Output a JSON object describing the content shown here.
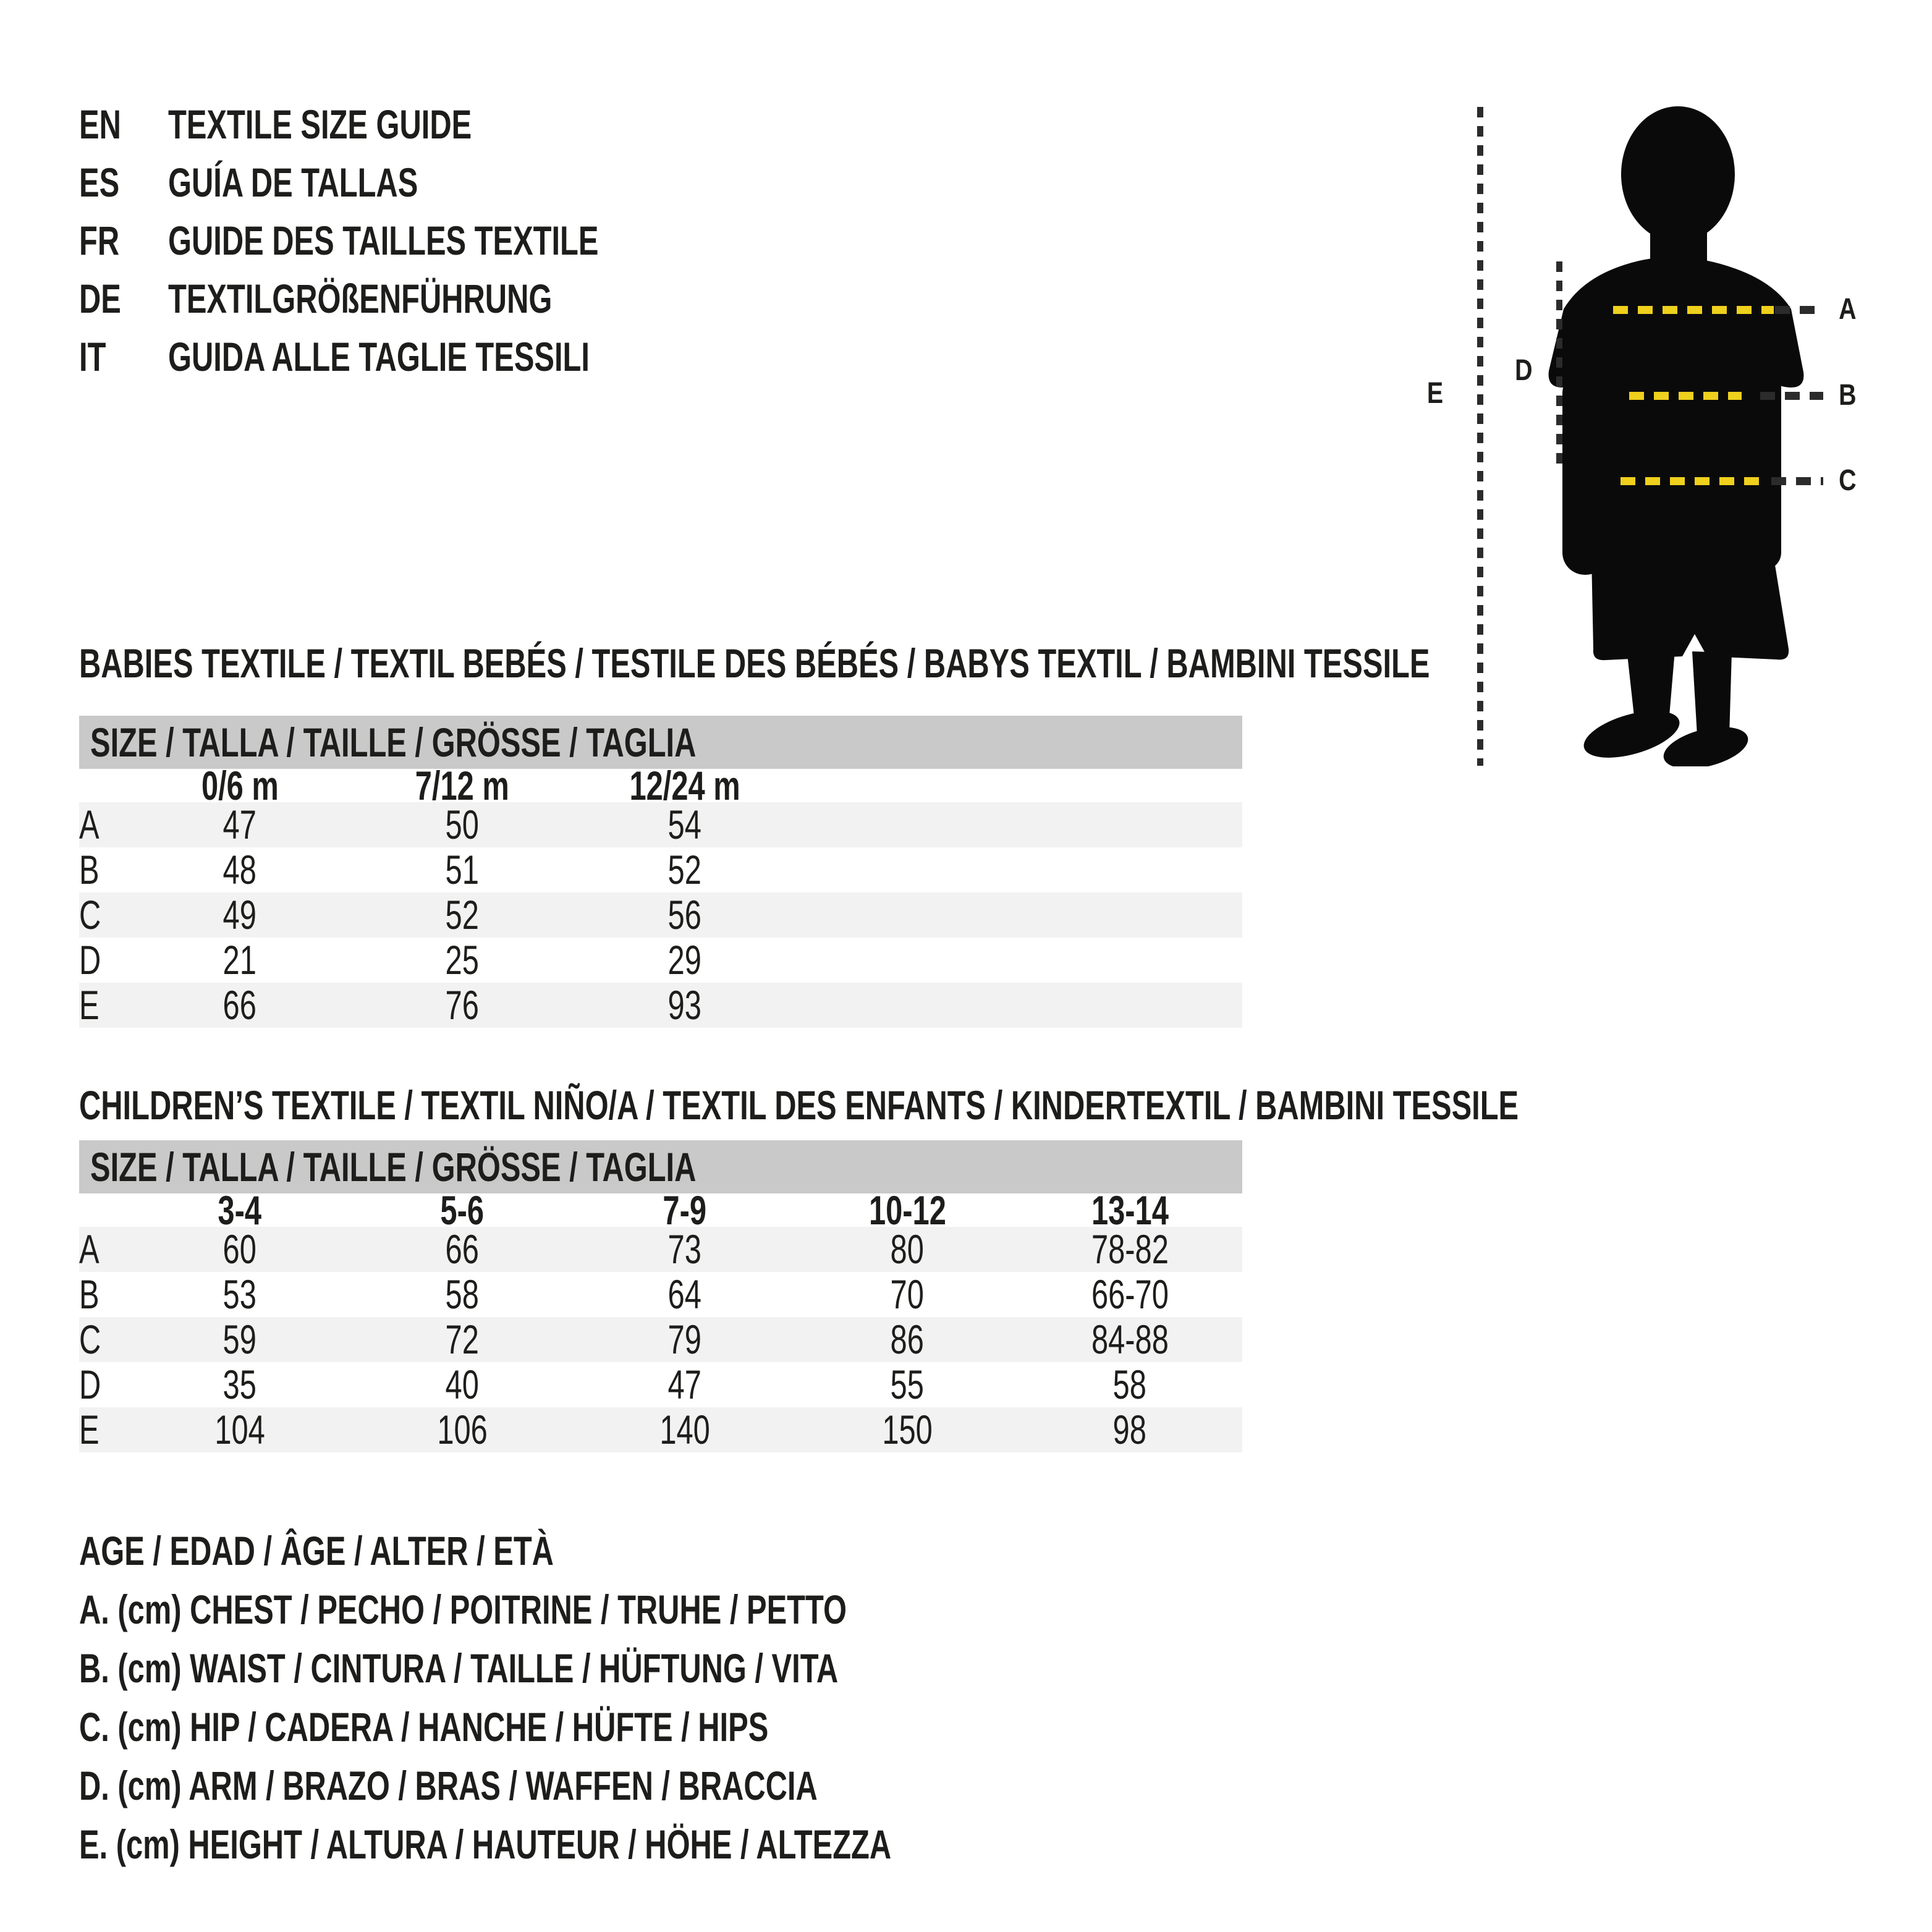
{
  "header": {
    "languages": [
      {
        "code": "EN",
        "title": "TEXTILE SIZE GUIDE"
      },
      {
        "code": "ES",
        "title": "GUÍA DE TALLAS"
      },
      {
        "code": "FR",
        "title": "GUIDE DES TAILLES TEXTILE"
      },
      {
        "code": "DE",
        "title": "TEXTILGRÖßENFÜHRUNG"
      },
      {
        "code": "IT",
        "title": "GUIDA ALLE TAGLIE TESSILI"
      }
    ]
  },
  "figure": {
    "measure_labels": [
      "A",
      "B",
      "C",
      "D",
      "E"
    ],
    "colors": {
      "silhouette": "#0a0a0a",
      "tape_yellow": "#efd01d",
      "dash_dark": "#2b2b2b"
    }
  },
  "babies_table": {
    "title": "BABIES TEXTILE / TEXTIL BEBÉS / TESTILE DES BÉBÉS / BABYS TEXTIL / BAMBINI TESSILE",
    "size_header": "SIZE / TALLA / TAILLE / GRÖSSE / TAGLIA",
    "columns": [
      "0/6 m",
      "7/12 m",
      "12/24 m"
    ],
    "rows": [
      {
        "label": "A",
        "values": [
          "47",
          "50",
          "54"
        ]
      },
      {
        "label": "B",
        "values": [
          "48",
          "51",
          "52"
        ]
      },
      {
        "label": "C",
        "values": [
          "49",
          "52",
          "56"
        ]
      },
      {
        "label": "D",
        "values": [
          "21",
          "25",
          "29"
        ]
      },
      {
        "label": "E",
        "values": [
          "66",
          "76",
          "93"
        ]
      }
    ]
  },
  "children_table": {
    "title": "CHILDREN’S TEXTILE / TEXTIL NIÑO/A / TEXTIL DES ENFANTS / KINDERTEXTIL / BAMBINI TESSILE",
    "size_header": "SIZE / TALLA / TAILLE / GRÖSSE / TAGLIA",
    "columns": [
      "3-4",
      "5-6",
      "7-9",
      "10-12",
      "13-14"
    ],
    "rows": [
      {
        "label": "A",
        "values": [
          "60",
          "66",
          "73",
          "80",
          "78-82"
        ]
      },
      {
        "label": "B",
        "values": [
          "53",
          "58",
          "64",
          "70",
          "66-70"
        ]
      },
      {
        "label": "C",
        "values": [
          "59",
          "72",
          "79",
          "86",
          "84-88"
        ]
      },
      {
        "label": "D",
        "values": [
          "35",
          "40",
          "47",
          "55",
          "58"
        ]
      },
      {
        "label": "E",
        "values": [
          "104",
          "106",
          "140",
          "150",
          "98"
        ]
      }
    ]
  },
  "legend": {
    "lines": [
      "AGE / EDAD / ÂGE / ALTER / ETÀ",
      "A. (cm) CHEST / PECHO / POITRINE / TRUHE / PETTO",
      "B. (cm) WAIST / CINTURA / TAILLE / HÜFTUNG / VITA",
      "C. (cm) HIP / CADERA / HANCHE / HÜFTE / HIPS",
      "D. (cm) ARM / BRAZO / BRAS / WAFFEN / BRACCIA",
      "E. (cm) HEIGHT / ALTURA / HAUTEUR / HÖHE / ALTEZZA"
    ]
  },
  "colors": {
    "header_bar": "#c9c9c9",
    "row_shade": "#f2f2f2",
    "text": "#1d1d1b"
  }
}
